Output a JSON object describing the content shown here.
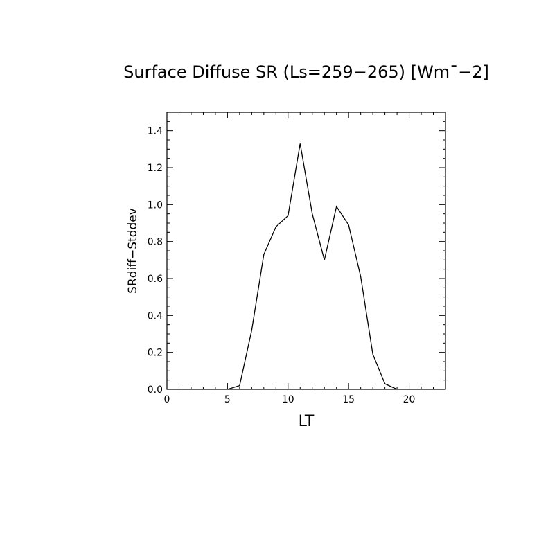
{
  "chart_data": {
    "type": "line",
    "title": "Surface Diffuse SR (Ls=259−265) [Wm¯−2]",
    "xlabel": "LT",
    "ylabel": "SRdiff−Stddev",
    "xlim": [
      0,
      23
    ],
    "ylim": [
      0,
      1.5
    ],
    "x_major_ticks": [
      0,
      5,
      10,
      15,
      20
    ],
    "x_tick_labels": [
      "0",
      "5",
      "10",
      "15",
      "20"
    ],
    "y_major_ticks": [
      0.0,
      0.2,
      0.4,
      0.6,
      0.8,
      1.0,
      1.2,
      1.4
    ],
    "y_tick_labels": [
      "0.0",
      "0.2",
      "0.4",
      "0.6",
      "0.8",
      "1.0",
      "1.2",
      "1.4"
    ],
    "grid": false,
    "series": [
      {
        "x": [
          5,
          6,
          7,
          8,
          9,
          10,
          11,
          12,
          13,
          14,
          15,
          16,
          17,
          18,
          19
        ],
        "y": [
          0.0,
          0.02,
          0.32,
          0.73,
          0.88,
          0.94,
          1.33,
          0.95,
          0.7,
          0.99,
          0.89,
          0.61,
          0.19,
          0.03,
          0.0
        ]
      }
    ],
    "line_color": "#000000"
  }
}
